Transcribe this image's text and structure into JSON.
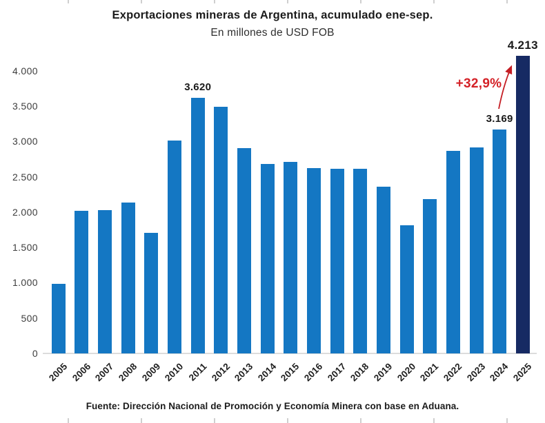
{
  "title": "Exportaciones mineras de Argentina, acumulado ene-sep.",
  "subtitle": "En millones de USD FOB",
  "source": "Fuente: Dirección Nacional de Promoción y Economía Minera con base en Aduana.",
  "colors": {
    "bar": "#1477c3",
    "highlight_bar": "#162a63",
    "growth_red": "#d42127",
    "arrow_red": "#c41e24",
    "axis_text": "#3d3d3d",
    "label_text": "#1a1a1a",
    "baseline": "#dcdcdc"
  },
  "chart_data": {
    "type": "bar",
    "title": "Exportaciones mineras de Argentina, acumulado ene-sep.",
    "subtitle": "En millones de USD FOB",
    "xlabel": "",
    "ylabel": "",
    "ylim": [
      0,
      4000
    ],
    "grid": false,
    "legend": "none",
    "categories": [
      "2005",
      "2006",
      "2007",
      "2008",
      "2009",
      "2010",
      "2011",
      "2012",
      "2013",
      "2014",
      "2015",
      "2016",
      "2017",
      "2018",
      "2019",
      "2020",
      "2021",
      "2022",
      "2023",
      "2024",
      "2025"
    ],
    "values": [
      985,
      2020,
      2030,
      2140,
      1710,
      3010,
      3620,
      3490,
      2910,
      2680,
      2710,
      2620,
      2610,
      2610,
      2360,
      1810,
      2190,
      2870,
      2920,
      3169,
      4213
    ],
    "highlight_index": 20,
    "ytick_labels": [
      "0",
      "500",
      "1.000",
      "1.500",
      "2.000",
      "2.500",
      "3.000",
      "3.500",
      "4.000"
    ],
    "ytick_values": [
      0,
      500,
      1000,
      1500,
      2000,
      2500,
      3000,
      3500,
      4000
    ],
    "bar_labels": [
      {
        "index": 6,
        "text": "3.620",
        "big": false
      },
      {
        "index": 19,
        "text": "3.169",
        "big": false
      },
      {
        "index": 20,
        "text": "4.213",
        "big": true
      }
    ],
    "growth_annotation": {
      "text": "+32,9%"
    }
  }
}
